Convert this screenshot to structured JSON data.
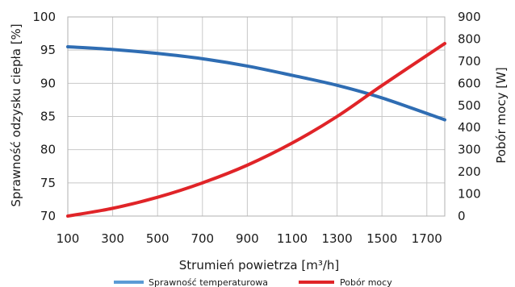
{
  "chart_data": {
    "type": "line",
    "title": "",
    "xlabel": "Strumień powietrza [m³/h]",
    "ylabel_left": "Sprawność odzysku ciepła [%]",
    "ylabel_right": "Pobór mocy [W]",
    "xlim": [
      100,
      1780
    ],
    "ylim_left": [
      70,
      100
    ],
    "ylim_right": [
      0,
      900
    ],
    "x_ticks": [
      "100",
      "300",
      "500",
      "700",
      "900",
      "1100",
      "1300",
      "1500",
      "1700"
    ],
    "y_left_ticks": [
      "70",
      "75",
      "80",
      "85",
      "90",
      "95",
      "100"
    ],
    "y_right_ticks": [
      "0",
      "100",
      "200",
      "300",
      "400",
      "500",
      "600",
      "700",
      "800",
      "900"
    ],
    "grid": true,
    "legend_position": "bottom",
    "series": [
      {
        "name": "Sprawność temperaturowa",
        "axis": "left",
        "color": "#2f6db3",
        "legend_color": "#5b9bd5",
        "x": [
          100,
          300,
          500,
          700,
          900,
          1100,
          1300,
          1500,
          1780
        ],
        "values": [
          95.5,
          95.1,
          94.5,
          93.7,
          92.6,
          91.2,
          89.7,
          87.8,
          84.5
        ]
      },
      {
        "name": "Pobór mocy",
        "axis": "right",
        "color": "#e02428",
        "legend_color": "#e02428",
        "x": [
          100,
          300,
          500,
          700,
          900,
          1100,
          1300,
          1500,
          1780
        ],
        "values": [
          0,
          35,
          85,
          150,
          230,
          330,
          450,
          590,
          780
        ]
      }
    ]
  }
}
